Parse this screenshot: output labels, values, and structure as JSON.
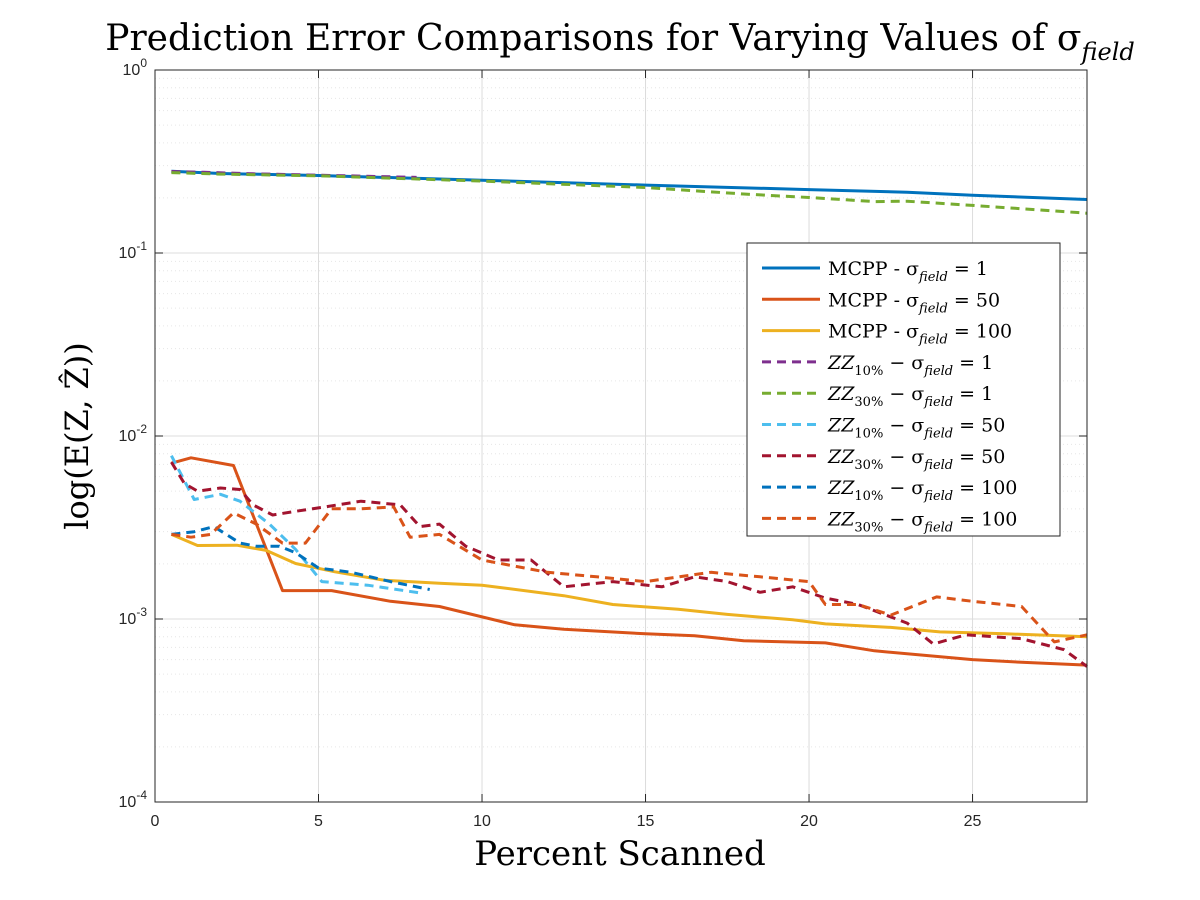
{
  "chart_data": {
    "type": "line",
    "title": "Prediction Error Comparisons for Varying Values of σ_field",
    "title_parts": {
      "main": "Prediction Error Comparisons for Varying Values of σ",
      "sub": "field"
    },
    "xlabel": "Percent Scanned",
    "ylabel": "log(E(Z, Ẑ))",
    "xlim": [
      0,
      28.5
    ],
    "ylim": [
      0.0001,
      1
    ],
    "yscale": "log",
    "grid": true,
    "minor_grid_y": true,
    "legend_position": "upper-right-inside",
    "x_ticks": [
      0,
      5,
      10,
      15,
      20,
      25
    ],
    "y_ticks": [
      {
        "value": 0.0001,
        "base": "10",
        "exp": "-4"
      },
      {
        "value": 0.001,
        "base": "10",
        "exp": "-3"
      },
      {
        "value": 0.01,
        "base": "10",
        "exp": "-2"
      },
      {
        "value": 0.1,
        "base": "10",
        "exp": "-1"
      },
      {
        "value": 1,
        "base": "10",
        "exp": "0"
      }
    ],
    "series": [
      {
        "name": "MCPP - σ_field = 1",
        "label_main": "MCPP - σ",
        "label_sub": "field",
        "label_tail": " = 1",
        "color": "#0072BD",
        "dash": false,
        "x": [
          0.5,
          2,
          5,
          10,
          15,
          20,
          23,
          25,
          28.5
        ],
        "y": [
          0.28,
          0.272,
          0.265,
          0.25,
          0.235,
          0.222,
          0.215,
          0.207,
          0.196
        ]
      },
      {
        "name": "MCPP - σ_field = 50",
        "label_main": "MCPP - σ",
        "label_sub": "field",
        "label_tail": " = 50",
        "color": "#D95319",
        "dash": false,
        "x": [
          0.5,
          1.1,
          2.4,
          3.9,
          5.4,
          7.2,
          8.7,
          11,
          12.5,
          15,
          16.5,
          18,
          20.5,
          22,
          25,
          26.5,
          28.5
        ],
        "y": [
          0.0071,
          0.0076,
          0.0069,
          0.00143,
          0.00143,
          0.00125,
          0.00117,
          0.00093,
          0.00088,
          0.00083,
          0.00081,
          0.00076,
          0.00074,
          0.00067,
          0.0006,
          0.00058,
          0.00056
        ]
      },
      {
        "name": "MCPP - σ_field = 100",
        "label_main": "MCPP - σ",
        "label_sub": "field",
        "label_tail": " = 100",
        "color": "#EDB120",
        "dash": false,
        "x": [
          0.5,
          1.3,
          2.5,
          3.4,
          4.3,
          5.5,
          7,
          8.7,
          10,
          12.5,
          14,
          16,
          17.5,
          19.5,
          20.5,
          22.5,
          24,
          26,
          28.5
        ],
        "y": [
          0.0029,
          0.00252,
          0.00253,
          0.00237,
          0.00201,
          0.00181,
          0.00163,
          0.00157,
          0.00153,
          0.00134,
          0.0012,
          0.00113,
          0.00106,
          0.00099,
          0.00094,
          0.0009,
          0.00085,
          0.00083,
          0.0008
        ]
      },
      {
        "name": "ZZ_10% − σ_field = 1",
        "label_main": "ZZ",
        "label_sub1": "10%",
        "label_mid": " − σ",
        "label_sub": "field",
        "label_tail": " = 1",
        "color": "#7E2F8E",
        "dash": true,
        "x": [
          0.5,
          1.5,
          3,
          5,
          8
        ],
        "y": [
          0.279,
          0.276,
          0.271,
          0.266,
          0.259
        ]
      },
      {
        "name": "ZZ_30% − σ_field = 1",
        "label_main": "ZZ",
        "label_sub1": "30%",
        "label_mid": " − σ",
        "label_sub": "field",
        "label_tail": " = 1",
        "color": "#77AC30",
        "dash": true,
        "x": [
          0.5,
          2,
          5,
          10,
          15,
          18,
          20,
          22,
          23,
          25,
          28.5
        ],
        "y": [
          0.275,
          0.27,
          0.264,
          0.247,
          0.228,
          0.21,
          0.201,
          0.191,
          0.192,
          0.182,
          0.165
        ]
      },
      {
        "name": "ZZ_10% − σ_field = 50",
        "label_main": "ZZ",
        "label_sub1": "10%",
        "label_mid": " − σ",
        "label_sub": "field",
        "label_tail": " = 50",
        "color": "#4DBEEE",
        "dash": true,
        "x": [
          0.5,
          1.2,
          2,
          2.6,
          3.5,
          4.3,
          5.1,
          6.5,
          8.2
        ],
        "y": [
          0.0078,
          0.0045,
          0.0048,
          0.0044,
          0.0033,
          0.0024,
          0.0016,
          0.00153,
          0.00138
        ]
      },
      {
        "name": "ZZ_30% − σ_field = 50",
        "label_main": "ZZ",
        "label_sub1": "30%",
        "label_mid": " − σ",
        "label_sub": "field",
        "label_tail": " = 50",
        "color": "#A2142F",
        "dash": true,
        "x": [
          0.5,
          0.9,
          1.3,
          2,
          2.6,
          3,
          3.6,
          4.4,
          5.2,
          6.3,
          7.5,
          8.1,
          8.7,
          9.5,
          10.5,
          11.5,
          12.5,
          14,
          15.5,
          16.5,
          17.5,
          18.5,
          19.5,
          20.5,
          21.5,
          23,
          23.8,
          24.8,
          26.5,
          27.8,
          28.5
        ],
        "y": [
          0.0072,
          0.0055,
          0.005,
          0.0052,
          0.0051,
          0.0042,
          0.0037,
          0.0039,
          0.0041,
          0.0044,
          0.0042,
          0.0032,
          0.0033,
          0.0025,
          0.0021,
          0.0021,
          0.0015,
          0.0016,
          0.0015,
          0.0017,
          0.0016,
          0.0014,
          0.0015,
          0.0013,
          0.0012,
          0.00095,
          0.00073,
          0.00082,
          0.00078,
          0.00068,
          0.00055
        ]
      },
      {
        "name": "ZZ_10% − σ_field = 100",
        "label_main": "ZZ",
        "label_sub1": "10%",
        "label_mid": " − σ",
        "label_sub": "field",
        "label_tail": " = 100",
        "color": "#0072BD",
        "dash": true,
        "x": [
          0.5,
          1.2,
          1.8,
          2.6,
          3.1,
          3.8,
          4.3,
          5,
          6,
          7.2,
          8.4
        ],
        "y": [
          0.0029,
          0.003,
          0.0032,
          0.0026,
          0.0025,
          0.0025,
          0.0023,
          0.0019,
          0.0018,
          0.0016,
          0.00145
        ]
      },
      {
        "name": "ZZ_30% − σ_field = 100",
        "label_main": "ZZ",
        "label_sub1": "30%",
        "label_mid": " − σ",
        "label_sub": "field",
        "label_tail": " = 100",
        "color": "#D95319",
        "dash": true,
        "x": [
          0.5,
          1.1,
          1.7,
          2.4,
          3.1,
          3.9,
          4.6,
          5.4,
          6.3,
          7.3,
          7.8,
          8.7,
          10,
          12,
          13.5,
          15,
          17,
          18.5,
          20,
          20.5,
          21.5,
          22.5,
          23.9,
          25,
          26.5,
          27.5,
          28.5
        ],
        "y": [
          0.0029,
          0.0028,
          0.0029,
          0.0038,
          0.0033,
          0.0026,
          0.0026,
          0.004,
          0.004,
          0.0041,
          0.0028,
          0.0029,
          0.0021,
          0.0018,
          0.0017,
          0.0016,
          0.0018,
          0.0017,
          0.0016,
          0.0012,
          0.0012,
          0.00105,
          0.00132,
          0.00125,
          0.00117,
          0.00075,
          0.00082
        ]
      }
    ]
  }
}
